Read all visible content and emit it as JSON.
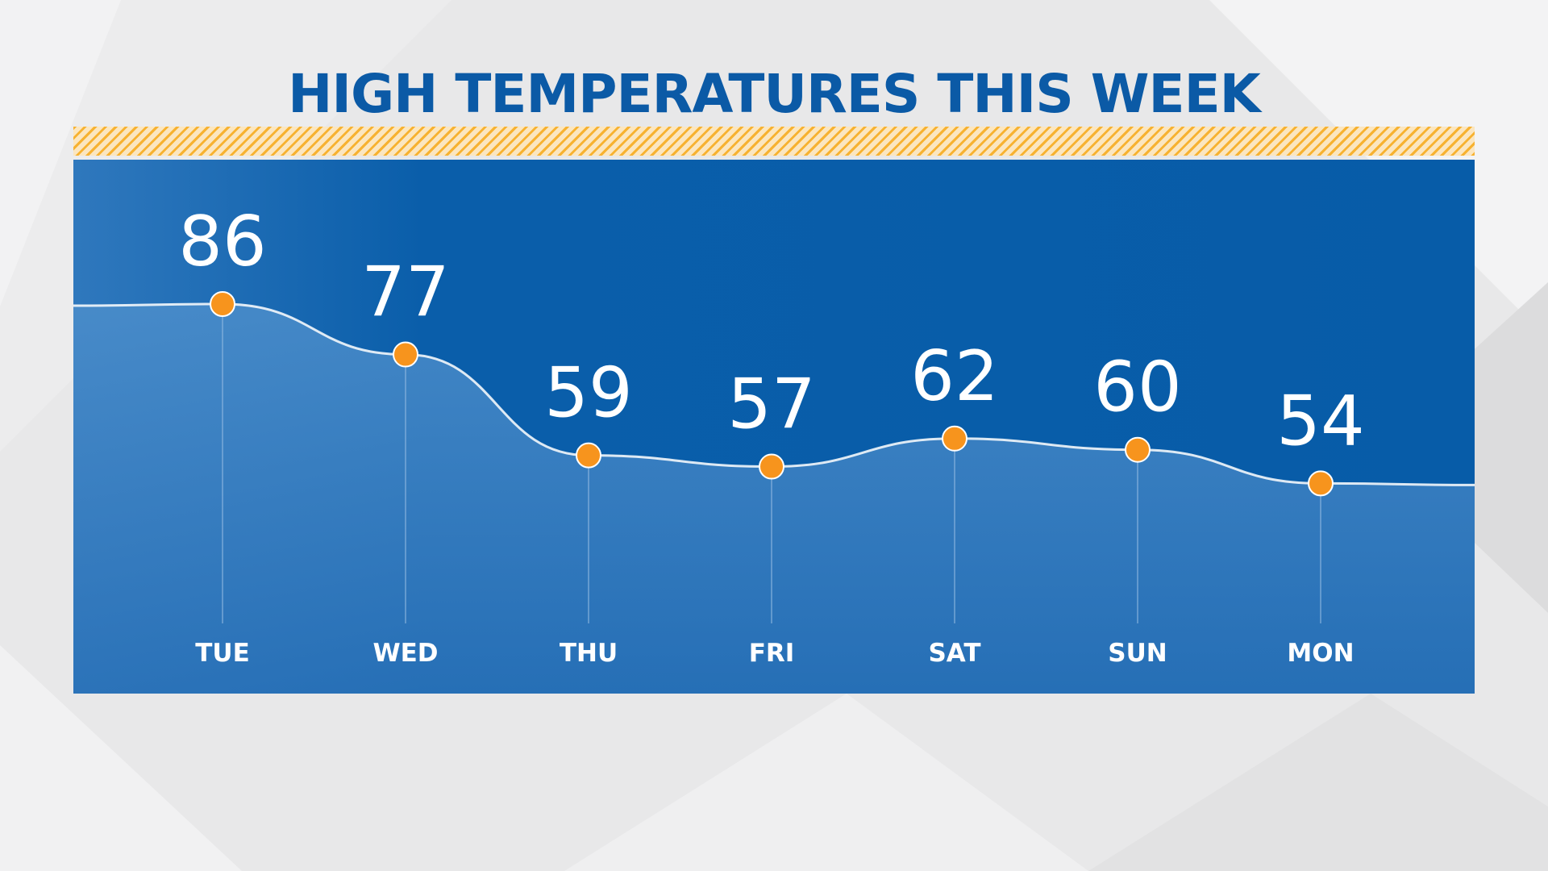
{
  "title": "HIGH TEMPERATURES THIS WEEK",
  "colors": {
    "title": "#0b5aa6",
    "panel": "#0a5eaa",
    "marker": "#f7941d",
    "hatch": "#f7b231"
  },
  "chart_data": {
    "type": "area",
    "title": "HIGH TEMPERATURES THIS WEEK",
    "categories": [
      "TUE",
      "WED",
      "THU",
      "FRI",
      "SAT",
      "SUN",
      "MON"
    ],
    "values": [
      86,
      77,
      59,
      57,
      62,
      60,
      54
    ],
    "xlabel": "",
    "ylabel": "",
    "grid": false,
    "legend": "none",
    "value_labels": true
  }
}
